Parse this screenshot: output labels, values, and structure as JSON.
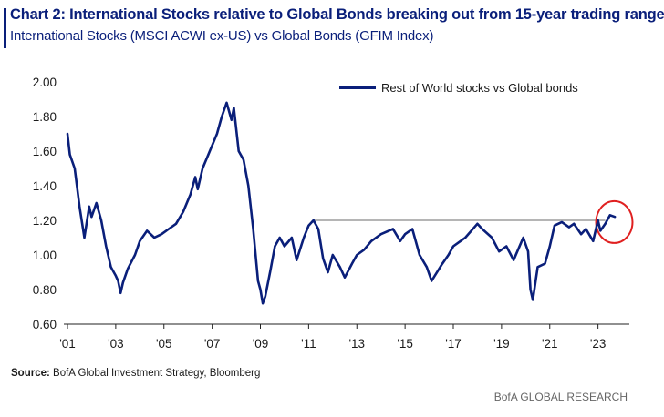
{
  "header": {
    "title": "Chart 2: International Stocks relative to Global Bonds breaking out from 15-year trading range",
    "subtitle": "International Stocks (MSCI ACWI ex-US) vs Global Bonds (GFIM Index)"
  },
  "footer": {
    "source_label": "Source:",
    "source_text": "BofA Global Investment Strategy, Bloomberg",
    "brand": "BofA GLOBAL RESEARCH"
  },
  "colors": {
    "series": "#0a1f7a",
    "resistance_line": "#b5b5b5",
    "highlight_circle": "#e02020",
    "title": "#0a1f7a"
  },
  "chart_data": {
    "type": "line",
    "title": "Chart 2: International Stocks relative to Global Bonds breaking out from 15-year trading range",
    "subtitle": "International Stocks (MSCI ACWI ex-US) vs Global Bonds (GFIM Index)",
    "xlabel": "",
    "ylabel": "",
    "xlim": [
      2001.0,
      2024.3
    ],
    "ylim": [
      0.6,
      2.0
    ],
    "x_ticks": [
      2001,
      2003,
      2005,
      2007,
      2009,
      2011,
      2013,
      2015,
      2017,
      2019,
      2021,
      2023
    ],
    "x_tick_labels": [
      "'01",
      "'03",
      "'05",
      "'07",
      "'09",
      "'11",
      "'13",
      "'15",
      "'17",
      "'19",
      "'21",
      "'23"
    ],
    "y_ticks": [
      0.6,
      0.8,
      1.0,
      1.2,
      1.4,
      1.6,
      1.8,
      2.0
    ],
    "y_tick_labels": [
      "0.60",
      "0.80",
      "1.00",
      "1.20",
      "1.40",
      "1.60",
      "1.80",
      "2.00"
    ],
    "grid": false,
    "legend_position": "top-right",
    "series": [
      {
        "name": "Rest of World stocks vs Global bonds",
        "x": [
          2001.0,
          2001.1,
          2001.3,
          2001.5,
          2001.7,
          2001.9,
          2002.0,
          2002.2,
          2002.4,
          2002.6,
          2002.8,
          2003.0,
          2003.1,
          2003.2,
          2003.3,
          2003.5,
          2003.8,
          2004.0,
          2004.3,
          2004.6,
          2004.9,
          2005.2,
          2005.5,
          2005.8,
          2006.1,
          2006.3,
          2006.4,
          2006.6,
          2006.9,
          2007.2,
          2007.4,
          2007.6,
          2007.8,
          2007.9,
          2008.1,
          2008.3,
          2008.5,
          2008.7,
          2008.9,
          2009.0,
          2009.1,
          2009.2,
          2009.4,
          2009.6,
          2009.8,
          2010.0,
          2010.3,
          2010.5,
          2010.8,
          2011.0,
          2011.2,
          2011.4,
          2011.6,
          2011.8,
          2012.0,
          2012.3,
          2012.5,
          2012.8,
          2013.0,
          2013.3,
          2013.6,
          2014.0,
          2014.5,
          2014.8,
          2015.0,
          2015.3,
          2015.6,
          2015.9,
          2016.1,
          2016.5,
          2016.8,
          2017.0,
          2017.5,
          2018.0,
          2018.2,
          2018.6,
          2018.9,
          2019.2,
          2019.5,
          2019.9,
          2020.1,
          2020.2,
          2020.3,
          2020.5,
          2020.8,
          2021.0,
          2021.2,
          2021.5,
          2021.8,
          2022.0,
          2022.3,
          2022.5,
          2022.8,
          2023.0,
          2023.1,
          2023.3,
          2023.5,
          2023.7
        ],
        "values": [
          1.7,
          1.58,
          1.5,
          1.28,
          1.1,
          1.28,
          1.22,
          1.3,
          1.2,
          1.05,
          0.93,
          0.88,
          0.85,
          0.78,
          0.84,
          0.92,
          1.0,
          1.08,
          1.14,
          1.1,
          1.12,
          1.15,
          1.18,
          1.25,
          1.35,
          1.45,
          1.38,
          1.5,
          1.6,
          1.7,
          1.8,
          1.88,
          1.78,
          1.85,
          1.6,
          1.55,
          1.4,
          1.15,
          0.85,
          0.8,
          0.72,
          0.76,
          0.9,
          1.05,
          1.1,
          1.05,
          1.1,
          0.97,
          1.1,
          1.17,
          1.2,
          1.15,
          0.98,
          0.9,
          1.0,
          0.93,
          0.87,
          0.95,
          1.0,
          1.03,
          1.08,
          1.12,
          1.15,
          1.08,
          1.12,
          1.15,
          1.0,
          0.93,
          0.85,
          0.94,
          1.0,
          1.05,
          1.1,
          1.18,
          1.15,
          1.1,
          1.02,
          1.05,
          0.97,
          1.1,
          1.02,
          0.8,
          0.74,
          0.93,
          0.95,
          1.05,
          1.17,
          1.19,
          1.16,
          1.18,
          1.12,
          1.15,
          1.08,
          1.2,
          1.14,
          1.18,
          1.23,
          1.22
        ]
      }
    ],
    "annotations": [
      {
        "type": "horizontal_line",
        "y": 1.2,
        "x_start": 2011.2,
        "x_end": 2023.3
      },
      {
        "type": "circle_highlight",
        "x": 2023.6,
        "y": 1.19
      }
    ]
  }
}
